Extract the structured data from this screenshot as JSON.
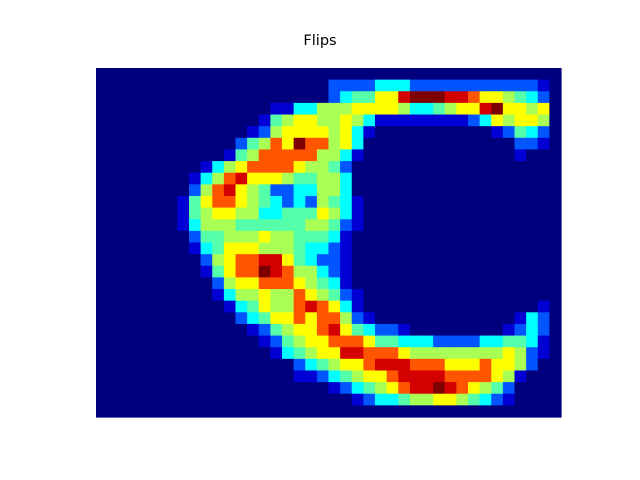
{
  "title": "Flips",
  "chart_data": {
    "type": "heatmap",
    "title": "Flips",
    "colormap": "jet",
    "colormap_colors": [
      "#00007f",
      "#0000ff",
      "#00ffff",
      "#7fff7f",
      "#ffff00",
      "#ff0000",
      "#7f0000"
    ],
    "axes_visible": false,
    "grid": false,
    "legend": "none",
    "n_rows": 30,
    "n_cols": 40,
    "value_range": [
      0,
      1
    ],
    "rows": [
      "0000000000000000000000000000000000000000",
      "0000000000000000000022223332222222222210",
      "0000000000000000000023446689998876654320",
      "0000000000000001133555666653345668966560",
      "0000000000000014566556531111111123656650",
      "0000000000000125666656310000000000124320",
      "0000000000002457697756300000000000002210",
      "0000000000014577777553100000000000001000",
      "0000000001356777765542000000000000000000",
      "0000000013578666544553000000000000000000",
      "0000000025786542233553000000000000000000",
      "0000000146776543232543100000000000000000",
      "0000000145665533444653100000000000000000",
      "0000000135554444445542100000000000000000",
      "0000000024455565544431000000000000000000",
      "0000000013466655543321000000000000000000",
      "0000000002567788643221000000000000000000",
      "0000000001467798755321000000000000000000",
      "0000000000256677765431000000000000000000",
      "0000000000135565576542100000000000000000",
      "0000000000013465578763100000000000000010",
      "0000000000002346676775210000000000001320",
      "0000000000000124566786432210000000012320",
      "0000000000000012456677764433322223344310",
      "0000000000000001345668877765555555565210",
      "0000000000000000023456678887776667665200",
      "0000000000000000011234566788887777651000",
      "0000000000000000000012345678898765420000",
      "0000000000000000000000123345566543210000",
      "0000000000000000000000000000000000000000"
    ]
  }
}
